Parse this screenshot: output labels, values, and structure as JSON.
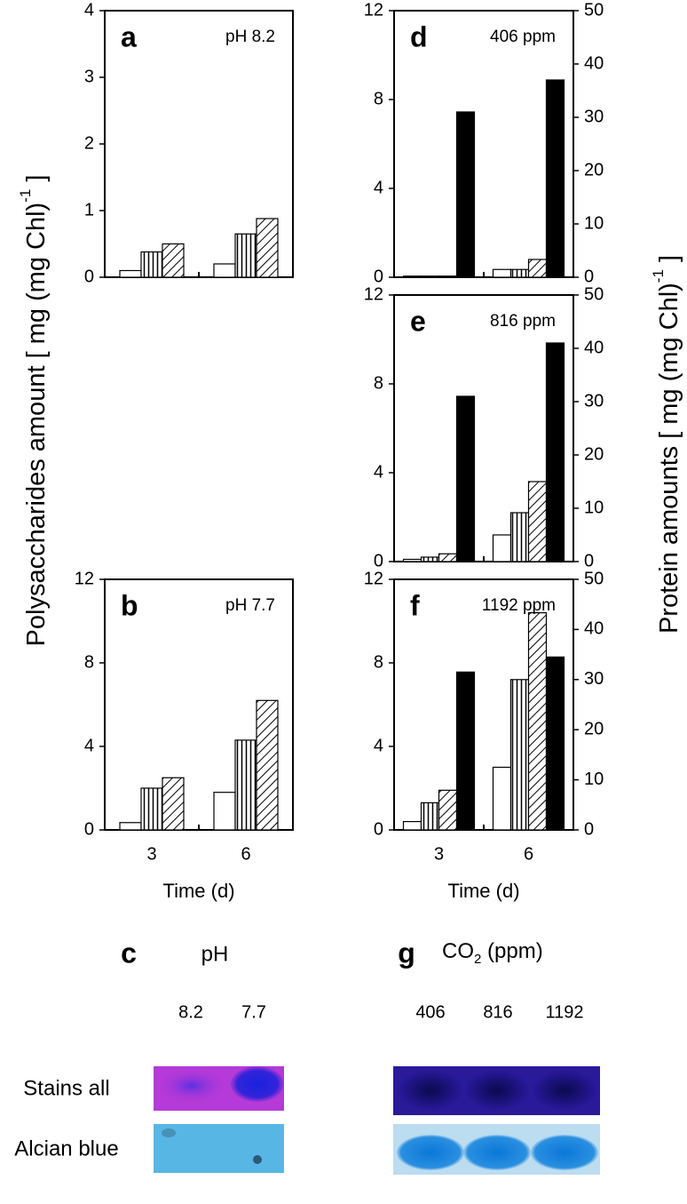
{
  "figure": {
    "left_label": {
      "main": "Polysaccharides amount [ mg (mg Chl)",
      "sup": "-1",
      "end": " ]"
    },
    "right_label": {
      "main": "Protein amounts [ mg (mg Chl)",
      "sup": "-1",
      "end": " ]"
    }
  },
  "chart_data": [
    {
      "type": "bar",
      "letter": "a",
      "annotation": "pH 8.2",
      "categories": [
        null,
        null
      ],
      "series": [
        {
          "color": "#ffffff",
          "pattern": "none",
          "values": [
            0.1,
            0.2
          ]
        },
        {
          "color": "#ffffff",
          "pattern": "vertical",
          "values": [
            0.38,
            0.65
          ]
        },
        {
          "color": "#ffffff",
          "pattern": "diagonal",
          "values": [
            0.5,
            0.88
          ]
        }
      ],
      "ylim": [
        0,
        4
      ],
      "yticks": [
        0,
        1,
        2,
        3,
        4
      ]
    },
    {
      "type": "bar",
      "letter": "b",
      "annotation": "pH 7.7",
      "categories": [
        "3",
        "6"
      ],
      "xlabel": "Time (d)",
      "series": [
        {
          "color": "#ffffff",
          "pattern": "none",
          "values": [
            0.35,
            1.8
          ]
        },
        {
          "color": "#ffffff",
          "pattern": "vertical",
          "values": [
            2.0,
            4.3
          ]
        },
        {
          "color": "#ffffff",
          "pattern": "diagonal",
          "values": [
            2.5,
            6.2
          ]
        }
      ],
      "ylim": [
        0,
        12
      ],
      "yticks": [
        0,
        4,
        8,
        12
      ]
    },
    {
      "type": "bar",
      "letter": "d",
      "annotation": "406 ppm",
      "categories": [
        null,
        null
      ],
      "series": [
        {
          "color": "#ffffff",
          "pattern": "none",
          "values": [
            0.05,
            0.35
          ]
        },
        {
          "color": "#ffffff",
          "pattern": "vertical",
          "values": [
            0.05,
            0.35
          ]
        },
        {
          "color": "#ffffff",
          "pattern": "diagonal",
          "values": [
            0.05,
            0.8
          ]
        },
        {
          "color": "#000000",
          "pattern": "none",
          "axis": "y2",
          "values": [
            31,
            37
          ]
        }
      ],
      "ylim": [
        0,
        12
      ],
      "yticks": [
        0,
        4,
        8,
        12
      ],
      "y2lim": [
        0,
        50
      ],
      "y2ticks": [
        0,
        10,
        20,
        30,
        40,
        50
      ]
    },
    {
      "type": "bar",
      "letter": "e",
      "annotation": "816 ppm",
      "categories": [
        null,
        null
      ],
      "series": [
        {
          "color": "#ffffff",
          "pattern": "none",
          "values": [
            0.1,
            1.2
          ]
        },
        {
          "color": "#ffffff",
          "pattern": "vertical",
          "values": [
            0.2,
            2.2
          ]
        },
        {
          "color": "#ffffff",
          "pattern": "diagonal",
          "values": [
            0.35,
            3.6
          ]
        },
        {
          "color": "#000000",
          "pattern": "none",
          "axis": "y2",
          "values": [
            31,
            41
          ]
        }
      ],
      "ylim": [
        0,
        12
      ],
      "yticks": [
        0,
        4,
        8,
        12
      ],
      "y2lim": [
        0,
        50
      ],
      "y2ticks": [
        0,
        10,
        20,
        30,
        40,
        50
      ]
    },
    {
      "type": "bar",
      "letter": "f",
      "annotation": "1192 ppm",
      "categories": [
        "3",
        "6"
      ],
      "xlabel": "Time (d)",
      "series": [
        {
          "color": "#ffffff",
          "pattern": "none",
          "values": [
            0.4,
            3.0
          ]
        },
        {
          "color": "#ffffff",
          "pattern": "vertical",
          "values": [
            1.3,
            7.2
          ]
        },
        {
          "color": "#ffffff",
          "pattern": "diagonal",
          "values": [
            1.9,
            10.4
          ]
        },
        {
          "color": "#000000",
          "pattern": "none",
          "axis": "y2",
          "values": [
            31.5,
            34.5
          ]
        }
      ],
      "ylim": [
        0,
        12
      ],
      "yticks": [
        0,
        4,
        8,
        12
      ],
      "y2lim": [
        0,
        50
      ],
      "y2ticks": [
        0,
        10,
        20,
        30,
        40,
        50
      ]
    }
  ],
  "gels": {
    "rows": [
      "Stains all",
      "Alcian blue"
    ],
    "c": {
      "letter": "c",
      "title": "pH",
      "lanes": [
        "8.2",
        "7.7"
      ]
    },
    "g": {
      "letter": "g",
      "title_main": "CO",
      "title_sub": "2",
      "title_end": " (ppm)",
      "lanes": [
        "406",
        "816",
        "1192"
      ]
    }
  }
}
